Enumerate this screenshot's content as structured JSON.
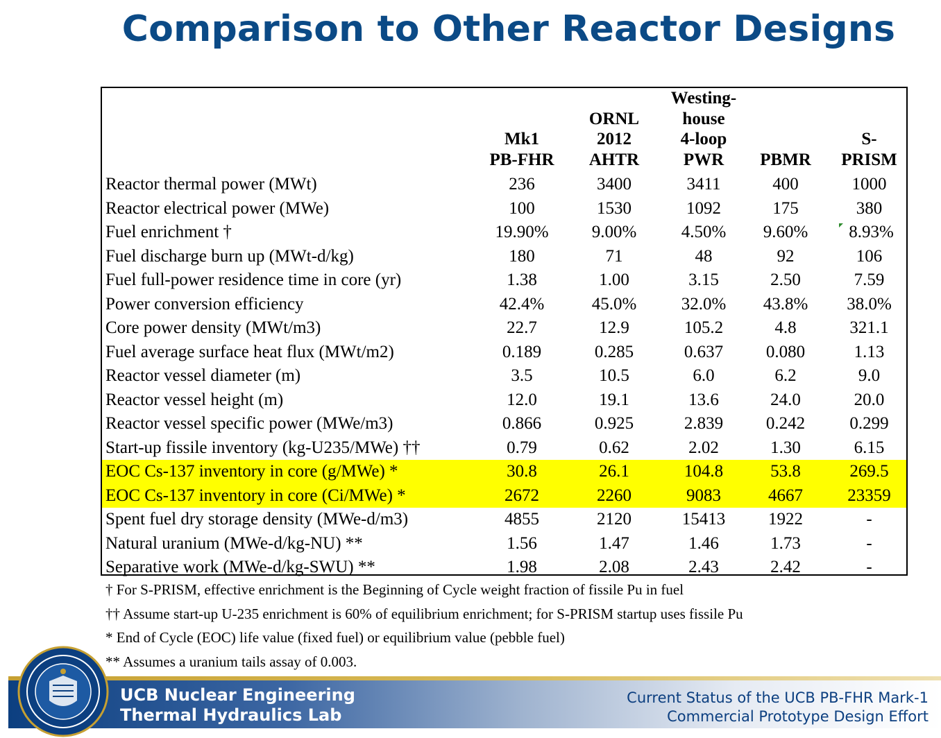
{
  "title": "Comparison to Other Reactor Designs",
  "table": {
    "headers": [
      [
        "Mk1",
        "PB-FHR"
      ],
      [
        "ORNL",
        "2012",
        "AHTR"
      ],
      [
        "Westing-",
        "house",
        "4-loop",
        "PWR"
      ],
      [
        "PBMR"
      ],
      [
        "S-",
        "PRISM"
      ]
    ],
    "rows": [
      {
        "label": "Reactor thermal power (MWt)",
        "values": [
          "236",
          "3400",
          "3411",
          "400",
          "1000"
        ]
      },
      {
        "label": "Reactor electrical power (MWe)",
        "values": [
          "100",
          "1530",
          "1092",
          "175",
          "380"
        ]
      },
      {
        "label": "Fuel enrichment †",
        "values": [
          "19.90%",
          "9.00%",
          "4.50%",
          "9.60%",
          "8.93%"
        ]
      },
      {
        "label": "Fuel discharge burn up (MWt-d/kg)",
        "values": [
          "180",
          "71",
          "48",
          "92",
          "106"
        ]
      },
      {
        "label": "Fuel full-power residence time in core (yr)",
        "values": [
          "1.38",
          "1.00",
          "3.15",
          "2.50",
          "7.59"
        ]
      },
      {
        "label": "Power conversion efficiency",
        "values": [
          "42.4%",
          "45.0%",
          "32.0%",
          "43.8%",
          "38.0%"
        ]
      },
      {
        "label": "Core power density (MWt/m3)",
        "values": [
          "22.7",
          "12.9",
          "105.2",
          "4.8",
          "321.1"
        ]
      },
      {
        "label": "Fuel average surface heat flux (MWt/m2)",
        "values": [
          "0.189",
          "0.285",
          "0.637",
          "0.080",
          "1.13"
        ]
      },
      {
        "label": "Reactor vessel diameter (m)",
        "values": [
          "3.5",
          "10.5",
          "6.0",
          "6.2",
          "9.0"
        ]
      },
      {
        "label": "Reactor vessel height (m)",
        "values": [
          "12.0",
          "19.1",
          "13.6",
          "24.0",
          "20.0"
        ]
      },
      {
        "label": "Reactor vessel specific power (MWe/m3)",
        "values": [
          "0.866",
          "0.925",
          "2.839",
          "0.242",
          "0.299"
        ]
      },
      {
        "label": "Start-up fissile inventory (kg-U235/MWe) ††",
        "values": [
          "0.79",
          "0.62",
          "2.02",
          "1.30",
          "6.15"
        ]
      },
      {
        "label": "EOC Cs-137 inventory in core (g/MWe) *",
        "values": [
          "30.8",
          "26.1",
          "104.8",
          "53.8",
          "269.5"
        ],
        "highlight": true
      },
      {
        "label": "EOC Cs-137 inventory in core (Ci/MWe) *",
        "values": [
          "2672",
          "2260",
          "9083",
          "4667",
          "23359"
        ],
        "highlight": true
      },
      {
        "label": "Spent fuel dry storage density (MWe-d/m3)",
        "values": [
          "4855",
          "2120",
          "15413",
          "1922",
          "-"
        ]
      },
      {
        "label": "Natural uranium (MWe-d/kg-NU) **",
        "values": [
          "1.56",
          "1.47",
          "1.46",
          "1.73",
          "-"
        ]
      },
      {
        "label": "Separative work (MWe-d/kg-SWU) **",
        "values": [
          "1.98",
          "2.08",
          "2.43",
          "2.42",
          "-"
        ]
      }
    ]
  },
  "footnotes": [
    "† For S-PRISM, effective enrichment is the Beginning of Cycle weight fraction of fissile Pu in fuel",
    "††  Assume start-up U-235 enrichment is 60% of equilibrium enrichment; for S-PRISM startup uses fissile Pu",
    "*  End of Cycle (EOC) life value (fixed fuel) or equilibrium value (pebble fuel)",
    "**  Assumes a uranium tails assay of 0.003."
  ],
  "footer": {
    "lab_line1": "UCB Nuclear Engineering",
    "lab_line2": "Thermal Hydraulics Lab",
    "status_line1": "Current Status of the UCB PB-FHR Mark-1",
    "status_line2": "Commercial Prototype Design Effort"
  },
  "colors": {
    "title": "#0b4a86",
    "highlight": "#ffff00",
    "footer_blue": "#0c3f80",
    "gold": "#c6a032"
  },
  "icons": {
    "seal": "university-seal-icon",
    "comment_marker": "comment-marker-icon"
  }
}
